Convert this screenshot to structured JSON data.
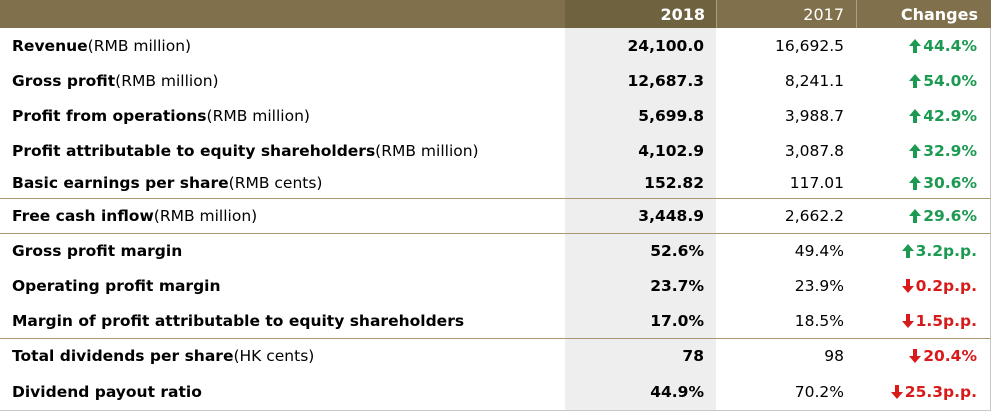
{
  "header": {
    "col_year_current": "2018",
    "col_year_prior": "2017",
    "col_changes": "Changes"
  },
  "rows": [
    {
      "name_bold": "Revenue",
      "unit": " (RMB million)",
      "v2018": "24,100.0",
      "v2017": "16,692.5",
      "change": "44.4%",
      "dir": "up"
    },
    {
      "name_bold": "Gross profit",
      "unit": " (RMB million)",
      "v2018": "12,687.3",
      "v2017": "8,241.1",
      "change": "54.0%",
      "dir": "up"
    },
    {
      "name_bold": "Profit from operations",
      "unit": " (RMB million)",
      "v2018": "5,699.8",
      "v2017": "3,988.7",
      "change": "42.9%",
      "dir": "up"
    },
    {
      "name_bold": "Profit attributable to equity shareholders",
      "unit": " (RMB million)",
      "v2018": "4,102.9",
      "v2017": "3,087.8",
      "change": "32.9%",
      "dir": "up"
    },
    {
      "name_bold": "Basic earnings per share",
      "unit": " (RMB cents)",
      "v2018": "152.82",
      "v2017": "117.01",
      "change": "30.6%",
      "dir": "up"
    },
    {
      "name_bold": "Free cash inflow",
      "unit": " (RMB million)",
      "v2018": "3,448.9",
      "v2017": "2,662.2",
      "change": "29.6%",
      "dir": "up"
    },
    {
      "name_bold": "Gross profit margin",
      "unit": "",
      "v2018": "52.6%",
      "v2017": "49.4%",
      "change": "3.2p.p.",
      "dir": "up"
    },
    {
      "name_bold": "Operating profit margin",
      "unit": "",
      "v2018": "23.7%",
      "v2017": "23.9%",
      "change": "0.2p.p.",
      "dir": "down"
    },
    {
      "name_bold": "Margin of profit attributable to equity shareholders",
      "unit": "",
      "v2018": "17.0%",
      "v2017": "18.5%",
      "change": "1.5p.p.",
      "dir": "down"
    },
    {
      "name_bold": "Total dividends per share",
      "unit": " (HK cents)",
      "v2018": "78",
      "v2017": "98",
      "change": "20.4%",
      "dir": "down"
    },
    {
      "name_bold": "Dividend payout ratio",
      "unit": "",
      "v2018": "44.9%",
      "v2017": "70.2%",
      "change": "25.3p.p.",
      "dir": "down"
    }
  ],
  "colors": {
    "header_bg": "#80704c",
    "header_2018_bg": "#6f623f",
    "up": "#1c9a52",
    "down": "#d91a1a"
  },
  "icons": {
    "up": "arrow-up-icon",
    "down": "arrow-down-icon"
  }
}
